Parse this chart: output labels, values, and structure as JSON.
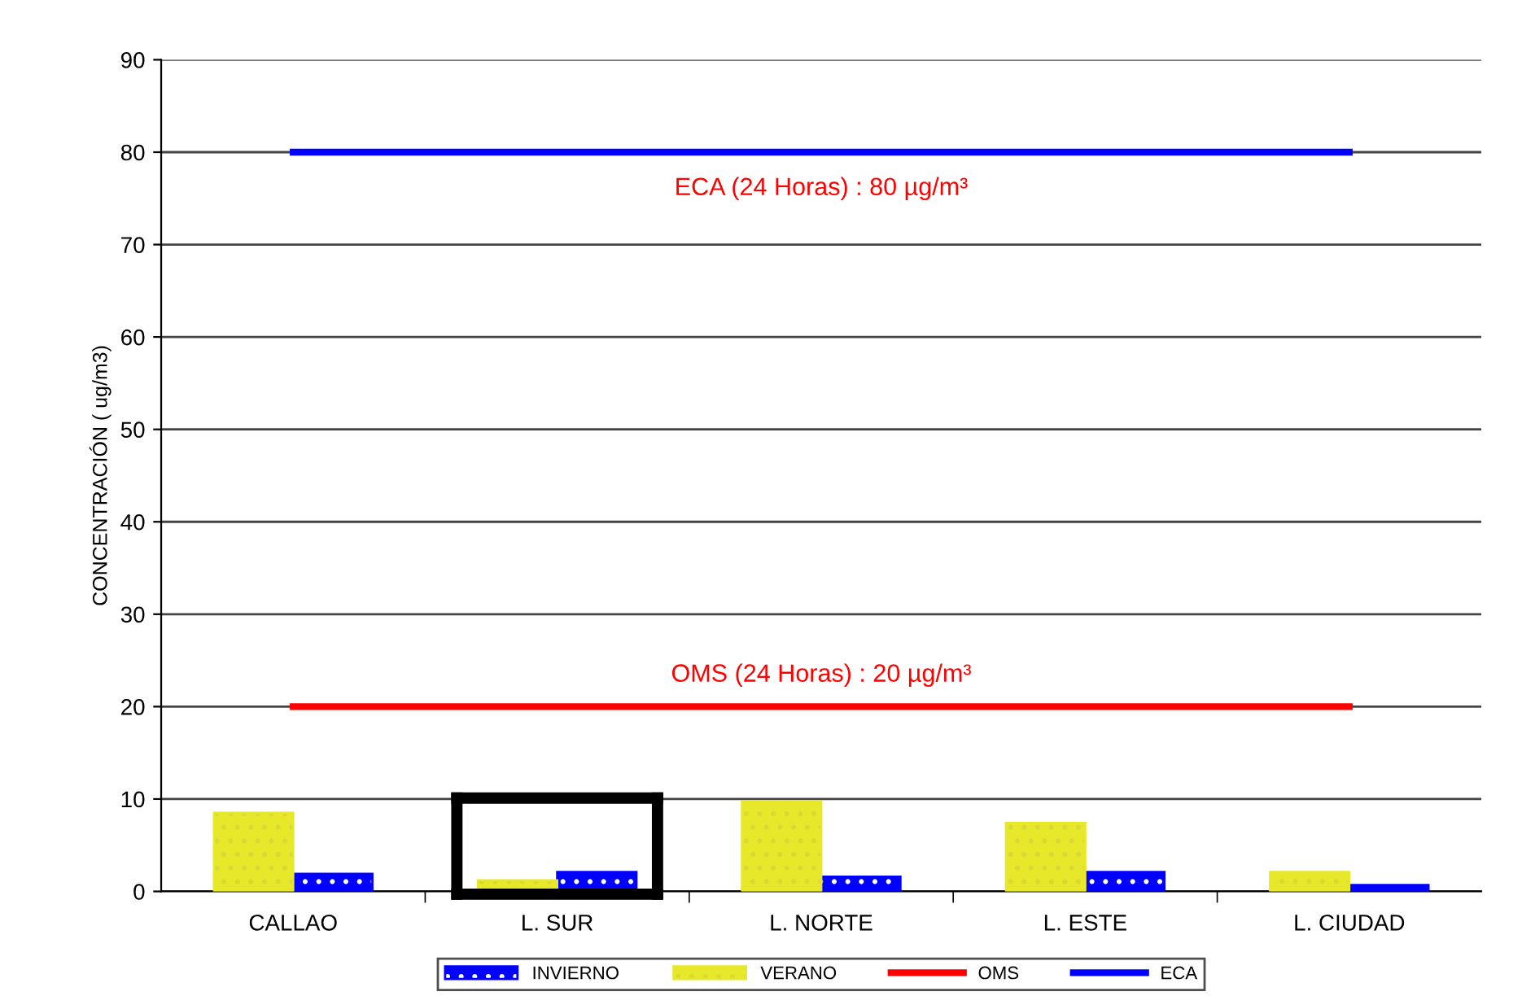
{
  "chart_data": {
    "type": "bar",
    "ylabel": "CONCENTRACIÓN ( ug/m3)",
    "categories": [
      "CALLAO",
      "L. SUR",
      "L. NORTE",
      "L. ESTE",
      "L. CIUDAD"
    ],
    "series": [
      {
        "name": "INVIERNO",
        "color": "#0000ff",
        "values": [
          1.9,
          2.1,
          1.6,
          2.1,
          0.7
        ]
      },
      {
        "name": "VERANO",
        "color": "#e8e82a",
        "values": [
          8.5,
          1.2,
          9.7,
          7.4,
          2.1
        ]
      },
      {
        "name": "OMS",
        "type": "line",
        "color": "#ff0000",
        "values": [
          20,
          20,
          20,
          20,
          20
        ]
      },
      {
        "name": "ECA",
        "type": "line",
        "color": "#0000ff",
        "values": [
          80,
          80,
          80,
          80,
          80
        ]
      }
    ],
    "annotations": [
      "ECA (24 Horas) : 80 µg/m³",
      "OMS (24 Horas) : 20 µg/m³"
    ],
    "ylim": [
      0,
      90
    ],
    "yticks": [
      0,
      10,
      20,
      30,
      40,
      50,
      60,
      70,
      80,
      90
    ],
    "grid": "y",
    "legend": "bottom",
    "marker": "none"
  }
}
